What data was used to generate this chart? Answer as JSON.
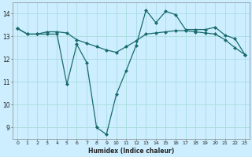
{
  "xlabel": "Humidex (Indice chaleur)",
  "bg_color": "#cceeff",
  "line_color": "#1a6b6b",
  "grid_color": "#aadddd",
  "x_values": [
    0,
    1,
    2,
    3,
    4,
    5,
    6,
    7,
    8,
    9,
    10,
    11,
    12,
    13,
    14,
    15,
    16,
    17,
    18,
    19,
    20,
    21,
    22,
    23
  ],
  "series1": [
    13.35,
    13.1,
    13.1,
    13.1,
    13.1,
    10.9,
    12.65,
    11.85,
    9.0,
    8.7,
    10.45,
    11.5,
    12.6,
    14.15,
    13.6,
    14.1,
    13.95,
    13.3,
    13.3,
    13.3,
    13.4,
    13.05,
    12.9,
    12.2
  ],
  "series2": [
    13.35,
    13.1,
    13.1,
    13.2,
    13.2,
    13.15,
    12.85,
    12.7,
    12.55,
    12.4,
    12.3,
    12.55,
    12.8,
    13.1,
    13.15,
    13.2,
    13.25,
    13.25,
    13.2,
    13.15,
    13.1,
    12.85,
    12.5,
    12.2
  ],
  "ylim": [
    8.5,
    14.5
  ],
  "yticks": [
    9,
    10,
    11,
    12,
    13,
    14
  ],
  "xlim": [
    -0.5,
    23.5
  ],
  "xticks": [
    0,
    1,
    2,
    3,
    4,
    5,
    6,
    7,
    8,
    9,
    10,
    11,
    12,
    13,
    14,
    15,
    16,
    17,
    18,
    19,
    20,
    21,
    22,
    23
  ]
}
